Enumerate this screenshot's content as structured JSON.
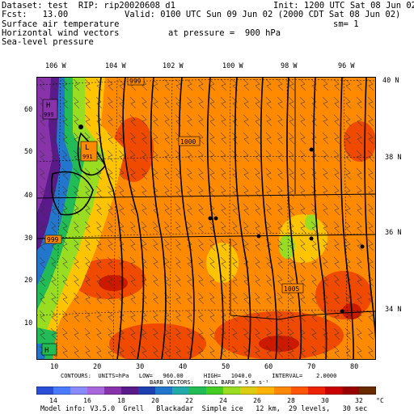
{
  "header": {
    "dataset": "Dataset: test  RIP: rip20020608 d1",
    "init": "Init: 1200 UTC Sat 08 Jun 02",
    "fcst": "Fcst:   13.00",
    "valid": "Valid: 0100 UTC Sun 09 Jun 02 (2000 CDT Sat 08 Jun 02)",
    "line3": "Surface air temperature",
    "sm": "sm= 1",
    "line4": "Horizontal wind vectors",
    "pressure": "at pressure =  900 hPa",
    "line5": "Sea-level pressure"
  },
  "map": {
    "lon_labels": [
      "106 W",
      "104 W",
      "102 W",
      "100 W",
      "98 W",
      "96 W"
    ],
    "lat_labels": [
      "40 N",
      "38 N",
      "36 N",
      "34 N"
    ],
    "y_ticks": [
      "60",
      "50",
      "40",
      "30",
      "20",
      "10"
    ],
    "x_ticks": [
      "10",
      "20",
      "30",
      "40",
      "50",
      "60",
      "70",
      "80"
    ],
    "pressure_labels": [
      "999",
      "1000",
      "999",
      "1005",
      "999"
    ],
    "high_label": "H",
    "low_label": "L",
    "high_value": "999",
    "low_value": "991"
  },
  "contours_line": "CONTOURS:  UNITS=hPa   LOW=   960.00      HIGH=   1040.0      INTERVAL=    2.0000",
  "barb_line": "BARB VECTORS:   FULL BARB = 5 m s⁻¹",
  "colorbar": {
    "labels": [
      "14",
      "16",
      "18",
      "20",
      "22",
      "24",
      "26",
      "28",
      "30",
      "32"
    ],
    "unit": "°C",
    "colors": [
      "#2a4fd6",
      "#4a7bff",
      "#8a8aff",
      "#aa66dd",
      "#8833aa",
      "#5a1a8a",
      "#1d3fb0",
      "#2277cc",
      "#22aaaa",
      "#22bb55",
      "#44cc22",
      "#99dd22",
      "#ddcc11",
      "#ffb300",
      "#ff8800",
      "#ff5500",
      "#ee2200",
      "#c80000",
      "#990000",
      "#6a2a00"
    ]
  },
  "footer": "Model info: V3.5.0  Grell   Blackadar  Simple ice   12 km,  29 levels,   30 sec"
}
